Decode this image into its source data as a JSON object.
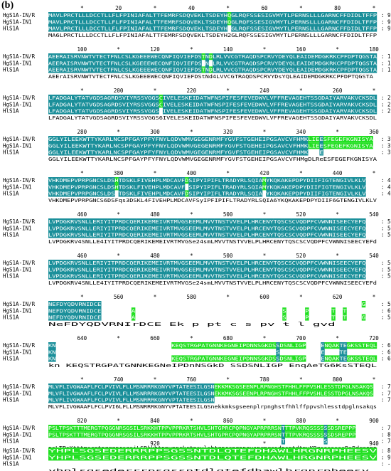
{
  "panel_label": "(b)",
  "colors": {
    "ident": "#1a8f9a",
    "sim": "#22e022",
    "text": "#000000"
  },
  "seq_names": [
    "HgS1A-IN/R",
    "HgS1A-IN1",
    "HlS1A"
  ],
  "blocks": [
    {
      "ruler": [
        "*",
        "20",
        "*",
        "40",
        "*",
        "60",
        "*",
        "80",
        "*"
      ],
      "rows": [
        {
          "seq": "MAVLPRCTLLLDCCTLLFLFPINIAFALTTFEMRFSDQVEKLTSDEYHQGLRQFSSESIGVMYTLPERNSLLLGARNCFFDIDLTFFP",
          "end": "90"
        },
        {
          "seq": "MAVLPRCTLLLDCCTLLFLFPINIAFALTTFEMRFSDQVEKLTSDEYHQGLRQFSSESIGVMYTLPERNSLLLGARNCFFDIDLTFFP",
          "end": "90"
        },
        {
          "seq": "MAVLPRCTLLLDCCTLLFLFPINIAFALTTFEMRFSDQVEKLTSDEYHTGLRQFSSESIGVMYTLPERNSLLLGARNCFFDIDLTFFP",
          "end": "90"
        }
      ],
      "consensus": "MA6LPRCTLLLDCCTLLFLFPINIAFALTTFEMRFSDQVEKLTSDEYH2GLRQFSSESIGVMYTLPERNSLLLGARNCFFDIDLTFFP"
    },
    {
      "ruler": [
        "100",
        "*",
        "120",
        "*",
        "140",
        "*",
        "160",
        "*",
        "180"
      ],
      "rows": [
        {
          "seq": "AEERAISRVNWTVTECTFNLCSLKGEEEWECQNFIQVIEFDSTNDLRLVVCGTRAQDSPCRVYDEYQLEAIDEMDGKRKCPFDPTQGSTA",
          "end": "180"
        },
        {
          "seq": "AEERAISRVNWTVTECTFNLCSLKGEEEWECQNFIQVIEFDSENNLRLVVCGTRAQDSPCRVYDEYQLEAIDEMDGKRKCPFDPTQGSTA",
          "end": "180"
        },
        {
          "seq": "AEERAISRVNWTVTECTFNLCSLKGEEEWECQNFIQVIEFDSTNDLRLVVCGTRAQDSPCRVYDEYQLEAIDEMDGKRKCPFDPTQGSTA",
          "end": "180"
        }
      ],
      "consensus": "AEErAISRVNWTVTECTFNLCSLKGEEEWECQNFIQVIEFDStNd4LVVCGTRAQDSPCRVYDsYQLEAIDEMDGKRKCPFDPTQGSTA"
    },
    {
      "ruler": [
        "*",
        "200",
        "*",
        "220",
        "*",
        "240",
        "*",
        "260",
        "*"
      ],
      "rows": [
        {
          "seq": "LFADGALYTATVGDSAGRDSVIYRSSVGGSCIVELESKEIDATWFNSPIFESFEVEDWVLVFFREVAGEHTSSGDAIYARVAKVCKSDL",
          "end": "270"
        },
        {
          "seq": "LFADGALYTATVGDSAGRDSVIYRSSVGGSCIVELESKEIDATWFNSPIFESFEVEDWVLVFFREVAGEHTSSGDAIYARVAKVCKSDL",
          "end": "270"
        },
        {
          "seq": "LFADGALYTATVGDSAGRDSVIYRSSVGGSDIVELESKEIDATWFNSPIFESFEVEDWVLVFFREVAGEHTSSGDAIYARVAKVCKSDL",
          "end": "270"
        }
      ],
      "consensus": "LFADGALYTATVGDSAGRDSVIYRSSVGGS6IVELESKEIDATWFNSPIFESFEVEDWVLVFFREVAGEHTSSGDAIYARVAKVCKSDL"
    },
    {
      "ruler": [
        "280",
        "*",
        "300",
        "*",
        "320",
        "*",
        "340",
        "*",
        "360"
      ],
      "rows": [
        {
          "seq": "GGLYILEEKWTTYKARLNCSPFGAYPFYFNYLQDVWMVGEGENRMFYGVFSTGEHEIPGSAVCVFHMKLIEESFEGEFKGNISYA",
          "end": "360"
        },
        {
          "seq": "GGLYILEEKWTTYKARLNCSPFGAYPFYFNYLQDVWMVGEGENRMFYGVFSTGEHEIPGSAVCVFHMKLIEESFEGEFKGNISYA",
          "end": "360"
        },
        {
          "seq": "GGLYILEEKWTTYKARLNCSPFGAYPFYFNYLQDVWMVGEGENRMFYGVFSTGEHEIPGSAVCVFHMKDLLEESFEGEFKGNISYA",
          "end": "360"
        }
      ],
      "consensus": "GGLYILEEKWTTYKARLNCSPFGAYPFYFNYLQDVWMVGEGENRMFYGVFSTGEHEIPGSAVCVFHMgDLReESFEGEFKGNISYA"
    },
    {
      "ruler": [
        "*",
        "380",
        "*",
        "400",
        "*",
        "420",
        "*",
        "440",
        "*"
      ],
      "rows": [
        {
          "seq": "VHKDMEPVPRPGNCSLDSHTDSKLFIVEHPLMDCAVFDSIPYIPIFLTRADYRLSQIAMYKQKAKEPDPYDIIFIGTENGIVLKLV",
          "end": "450"
        },
        {
          "seq": "VHKDMEPVPRPGNCSLDSHTDSKLFIVEHPLMDCAVFGSIPYIPIFLTRADYRLSQIAMYKQKAKEPDPYDIIFIGTENGIVLKLV",
          "end": "450"
        },
        {
          "seq": "VHKDMEPVPRPGNCSLDSETDSKLFIVEHPLMDCAVFDSIPYIPIFLTRADYRLSQIAGYKQKAKEPDPYDIIFIGTENGIVLKLV",
          "end": "450"
        }
      ],
      "consensus": "VHKDMEPVPRPGNCS6DSFqs3DSKL4FIVEHPLMDCAVFSyIPFIPIFLTRADYRLSQIA6YKQKAKEPDPYDIIF6GTENGIVLKLV"
    },
    {
      "ruler": [
        "460",
        "*",
        "480",
        "*",
        "500",
        "*",
        "520",
        "*",
        "540"
      ],
      "rows": [
        {
          "seq": "LVPDGKRVSNLLERIYITPRDCQERIKEMEIVRTMVGSEEMLMVVTNSTVVELPLHRCENYTQSCSCVQDPFCVWNNISEECYEFQ",
          "end": "540"
        },
        {
          "seq": "LVPDGKRVSNLLERIYITPRDCQERIKEMEIVRTMVGSEEMLMVVTNSTVVELPLHRCENYTQSCSCVQDPFCVWNNISEECYEFQ",
          "end": "540"
        },
        {
          "seq": "LVPDGKRVSNLLERIYITPRDCQERIKEMEIVRTMVGSEEMLMVVTNSTVVELPLHRCENYTQSCSCVQDPFCVWNNISEECYEFQ",
          "end": "540"
        }
      ],
      "consensus": "LVPDGKRV4SNLLE4IYITPRDCQERIKEMEIVRTMVGSe24smLMVVTNSTVVELPLHRCENYTQSCSCVQDPFCVWNNISEECYEFd"
    },
    {
      "ruler": [
        "460",
        "*",
        "480",
        "*",
        "500",
        "*",
        "520",
        "*",
        "540"
      ],
      "rows": [
        {
          "seq": "LVPDGKRVSNLLERIYITPRDCQERIKEMEIVRTMVGSEEMLMVVTNSTVVELPLHRCENYTQSCSCVQDPFCVWNNISEECYEFQ",
          "end": "540"
        },
        {
          "seq": "LVPDGKRVSNLLERIYITPRDCQERIKEMEIVRTMVGSEEMLMVVTNSTVVELPLHRCENYTQSCSCVQDPFCVWNNISEECYEFQ",
          "end": "540"
        },
        {
          "seq": "LVPDGKRVSNLLERIYITPRDCQERIKEMEIVRTMVGSEEMLMVVTNSTVVELPLHRCENYTQSCSCVQDPFCVWNNISEECYEFQ",
          "end": "540"
        }
      ],
      "consensus": "LVPDGKRV4SNLLE4IYITPRDCQERIKEMEIVRTMVGSe24smLMVVTNSTVVELPLHRCENYTQSCSCVQDPFCVWNNISEECYEFd"
    },
    {
      "ruler": [
        "*",
        "560",
        "*",
        "580",
        "*",
        "600",
        "*",
        "620",
        "*"
      ],
      "rows": [
        {
          "seq": "NEFDYQDVRNIDCE---------------------------------------------------------------------GVD",
          "end": "560"
        },
        {
          "seq": "NEFDYQDVRNIDCEPTAPTPTAAECLCEPPTSASFKPVTEPHETTLLMATSYSPSSLPSSETSSNTVCPSGNTNTTFGTVDGVD",
          "end": "681"
        },
        {
          "seq": "NEFDYQDVRNIDCEKLPKPTCTAAECLCE--------------------------------SSPSSSLPVVCSTETTSTFTTLGGVD",
          "end": "599"
        }
      ],
      "consensus": "NeFDYQDVRNIrDCE  Ek  p pt  c                        s  pv       t  l     gvd"
    },
    {
      "ruler": [
        "640",
        "*",
        "660",
        "*",
        "680",
        "*",
        "700",
        "*",
        "720"
      ],
      "rows": [
        {
          "seq": "KN-------------------------------KEQSTRGPATGNNKEGNEIPDNNSGKDSSDSNLIGP----ENQAKTEGKSSTEQL",
          "end": "613"
        },
        {
          "seq": "KNSLPSESTSTNPVQSNTTTFKLTSVGTGVEKEQSTRGPATGNNKEGNEIPDNNSGKDSSDSNLIGPENQAKTEGKSSTEQL",
          "end": "681"
        },
        {
          "seq": "KN-------------------------------KEQSTRGPATGNNKEGNEIPDNNSGKDSSDSNLIGP----ENQAKTEGKSSTEQL",
          "end": "681"
        }
      ],
      "consensus": "kn                              KEQSTRGPATGNNKEGNeIPDnNSGkD SSDSNLIGP    EnqAeTG6KsSTEQL"
    },
    {
      "ruler": [
        "*",
        "740",
        "*",
        "760",
        "*",
        "780",
        "*",
        "800",
        "*"
      ],
      "rows": [
        {
          "seq": "MLVFLIVGWAAFLFCLPVIVLFLLMSNRRRKGNYVPTATEESILGSNEKKMKSGSEENPLRPNGHSTFHHLFFPVSHLESSTDPGLNSAKQS",
          "end": "703"
        },
        {
          "seq": "MLVFLIVGWAAFLFCLPVIVLFLLMSNRRRKGNYVPTATEESILGSNEKKMKSGSEENPLRPNGHSTFHHLFFPVSHLESSTDPGLNSAKQS",
          "end": "771"
        },
        {
          "seq": "MLVFLIVGWAAFLFCLPVIVLFLLMSNRRRKGNYVPTATEESILGSN---------------------------------------------",
          "end": "725"
        }
      ],
      "consensus": "MLVFLIVGWAAFLFCLPVI6LFLLMSNRRRKGNYVPTATEESILGSnekkmksgseenplrpnghstfhhlffppvshlesstdpglnsakqs"
    },
    {
      "ruler": [
        "820",
        "*",
        "840",
        "*",
        "860",
        "*",
        "880",
        "*",
        "900"
      ],
      "rows": [
        {
          "seq": "PSLTPSKTTTMERGTPQGGNRSGSILSRKKHTPPVPPRKRTSHVLSHTGPRCPQPNGYAPRPRRSNTTTPVKRQSSSSSSDSREPPP",
          "end": "793"
        },
        {
          "seq": "PSLTPSKTTTMERGTPQGGNRSGSILSRKKHTPPVPPRKRTSHVLSHTGPRCPQPNGYAPRPRRSNTTTPVKRQSSSSSSDSREPPP",
          "end": "861"
        },
        {
          "seq": "-------------------------HLSR---------------------------------EDKCTKR--------DSREPPP",
          "end": "748"
        }
      ],
      "consensus": "psLTPsKtttmergtpqggnrsgsiLSRkkhtppvpprkrtnsvlshtgprcpqpngyaprprrsdnsntdtpvKRqsssssssDsRdreppp"
    },
    {
      "ruler": [
        "920",
        "*",
        "940"
      ],
      "rows": [
        {
          "seq": "YHPLSGSEDERRRPPSGSSNTDLQTEFDHAWLHRGNRPHEESV",
          "end": "836"
        },
        {
          "seq": "YHPLSGSEDERRRPPSGSSNTDLQTEFDHAWLHRGNRPHEESV",
          "end": "904"
        },
        {
          "seq": "------------------------------------------",
          "end": "-"
        }
      ],
      "consensus": "yhplsgsederrrpsgssntdlqtefdhawlhrgnrpheesv"
    }
  ]
}
